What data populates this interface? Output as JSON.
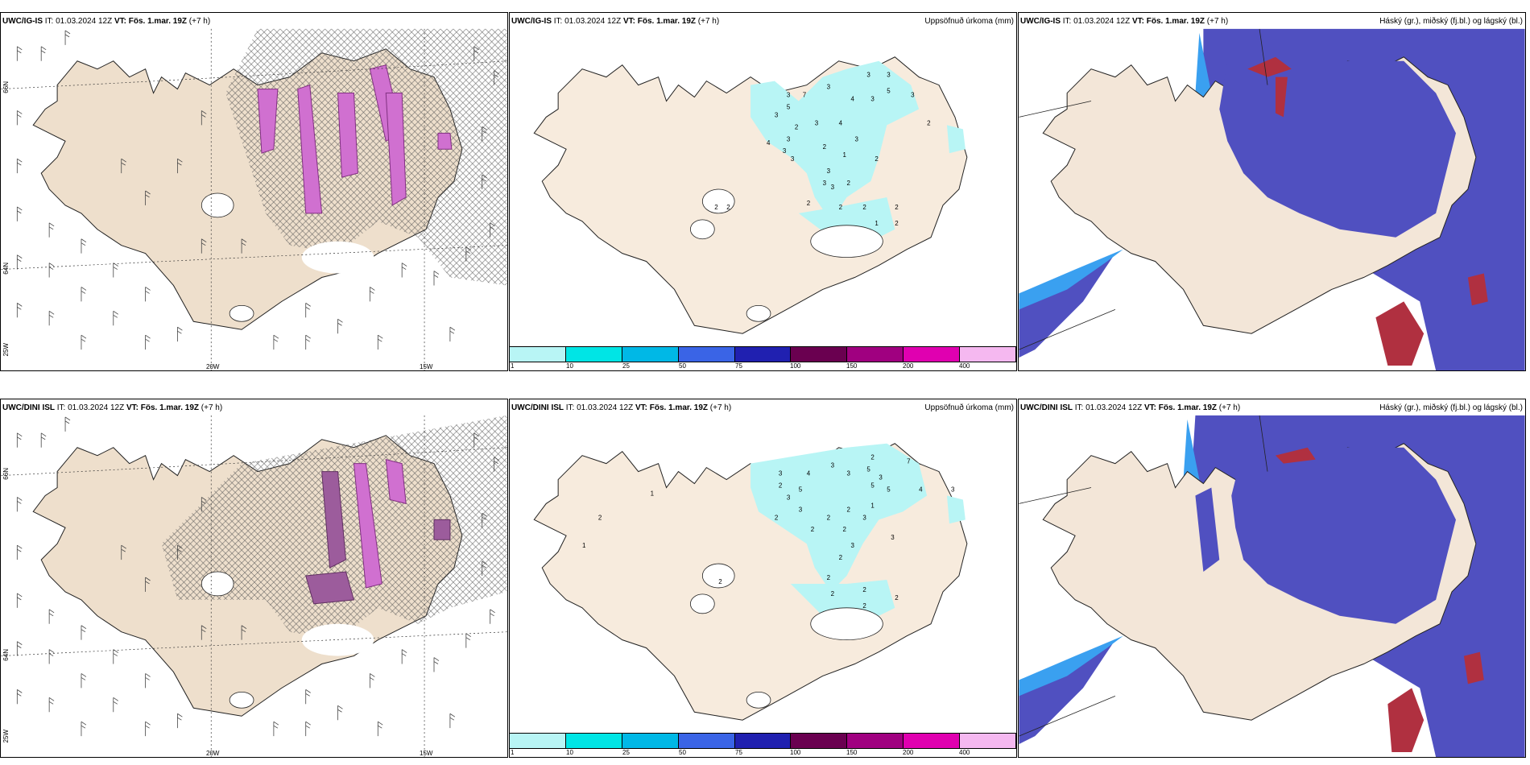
{
  "rows": [
    {
      "model": "UWC/IG-IS",
      "init_prefix": "IT:",
      "init_time": "01.03.2024 12Z",
      "valid_prefix": "VT:",
      "valid_time": "Fös. 1.mar. 19Z",
      "lead": "(+7 h)"
    },
    {
      "model": "UWC/DINI ISL",
      "init_prefix": "IT:",
      "init_time": "01.03.2024 12Z",
      "valid_prefix": "VT:",
      "valid_time": "Fös. 1.mar. 19Z",
      "lead": "(+7 h)"
    }
  ],
  "precip_title": "Uppsöfnuð úrkoma (mm)",
  "cloud_title": "Háský (gr.), miðský (fj.bl.) og lágský (bl.)",
  "axis_labels": {
    "lat_66": "66N",
    "lat_64": "64N",
    "lon_25": "25W",
    "lon_20": "20W",
    "lon_15": "15W"
  },
  "colorbar": {
    "ticks": [
      "1",
      "10",
      "25",
      "50",
      "75",
      "100",
      "150",
      "200",
      "400"
    ],
    "colors": [
      "#b8f5f5",
      "#00e5e5",
      "#00b8e6",
      "#3a64e6",
      "#2020b0",
      "#6a0050",
      "#a00080",
      "#e000b0",
      "#f5b8f0"
    ]
  },
  "precip_labels_top": [
    "3",
    "5",
    "7",
    "3",
    "4",
    "3",
    "3",
    "2",
    "3",
    "4",
    "3",
    "5",
    "3",
    "3",
    "3",
    "2",
    "3",
    "4",
    "3",
    "3",
    "3",
    "2",
    "2",
    "2",
    "2",
    "2",
    "2",
    "1",
    "2",
    "2",
    "1",
    "3",
    "3",
    "2",
    "2"
  ],
  "precip_labels_bottom": [
    "3",
    "2",
    "4",
    "3",
    "5",
    "3",
    "3",
    "2",
    "1",
    "2",
    "1",
    "2",
    "3",
    "2",
    "2",
    "5",
    "3",
    "5",
    "2",
    "3",
    "2",
    "3",
    "2",
    "2",
    "2",
    "3",
    "4",
    "7",
    "3",
    "2",
    "5",
    "1",
    "2",
    "2",
    "2"
  ],
  "colors": {
    "land": "#f7ebdd",
    "land_wind_panel": "#eedfcc",
    "sea": "#ffffff",
    "hatch": "#555555",
    "vertical_velocity": "#d070d0",
    "high_cloud": "#b03040",
    "mid_cloud": "#5050c0",
    "low_cloud": "#3aa0f0"
  }
}
